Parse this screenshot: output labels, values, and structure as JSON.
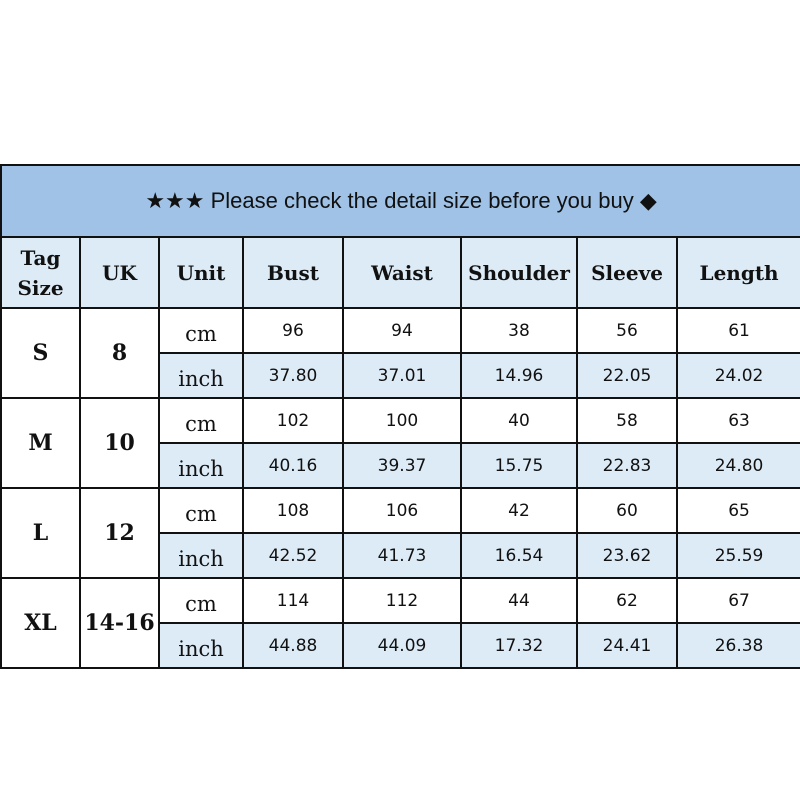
{
  "title": "★★★ Please check the detail size before you buy ◆",
  "colors": {
    "title_bg": "#9fc2e6",
    "header_bg": "#ddebf7",
    "border": "#111111"
  },
  "headers": [
    "Tag Size",
    "UK",
    "Unit",
    "Bust",
    "Waist",
    "Shoulder",
    "Sleeve",
    "Length"
  ],
  "rows": [
    {
      "size": "S",
      "uk": "8",
      "cm": {
        "unit": "cm",
        "values": [
          "96",
          "94",
          "38",
          "56",
          "61"
        ]
      },
      "inch": {
        "unit": "inch",
        "values": [
          "37.80",
          "37.01",
          "14.96",
          "22.05",
          "24.02"
        ]
      }
    },
    {
      "size": "M",
      "uk": "10",
      "cm": {
        "unit": "cm",
        "values": [
          "102",
          "100",
          "40",
          "58",
          "63"
        ]
      },
      "inch": {
        "unit": "inch",
        "values": [
          "40.16",
          "39.37",
          "15.75",
          "22.83",
          "24.80"
        ]
      }
    },
    {
      "size": "L",
      "uk": "12",
      "cm": {
        "unit": "cm",
        "values": [
          "108",
          "106",
          "42",
          "60",
          "65"
        ]
      },
      "inch": {
        "unit": "inch",
        "values": [
          "42.52",
          "41.73",
          "16.54",
          "23.62",
          "25.59"
        ]
      }
    },
    {
      "size": "XL",
      "uk": "14-16",
      "cm": {
        "unit": "cm",
        "values": [
          "114",
          "112",
          "44",
          "62",
          "67"
        ]
      },
      "inch": {
        "unit": "inch",
        "values": [
          "44.88",
          "44.09",
          "17.32",
          "24.41",
          "26.38"
        ]
      }
    }
  ]
}
